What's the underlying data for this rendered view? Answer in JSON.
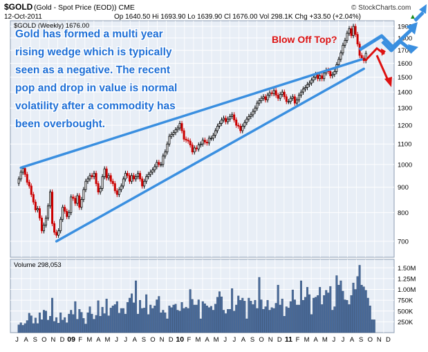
{
  "header": {
    "symbol": "$GOLD",
    "description": "(Gold - Spot Price (EOD)) CME",
    "watermark": "© StockCharts.com",
    "date": "12-Oct-2011",
    "ohlc": "Op 1640.50  Hi 1693.90  Lo 1639.90  Cl 1676.00  Vol 298.1K  Chg +33.50 (+2.04%)",
    "chg_arrow": "▲"
  },
  "legend": {
    "price": "$GOLD (Weekly) 1676.00",
    "volume": "Volume 298,053"
  },
  "annotations": {
    "commentary": [
      "Gold has formed a multi year",
      "rising wedge which is typically",
      "seen as a negative. The recent",
      "pop and drop in value is normal",
      "volatility after a commodity has",
      "been overbought."
    ],
    "blow_off": "Blow Off Top?"
  },
  "colors": {
    "up": "#000000",
    "down": "#cc0000",
    "volume": "#4a6b9a",
    "trendline": "#3a8fe0",
    "annotation_text": "#1e6fd6",
    "blow_off_text": "#dd1111",
    "arrow_red": "#dd1111",
    "arrow_blue": "#3a8fe0",
    "panel_bg": "#e8eef6",
    "grid": "#ffffff"
  },
  "chart_data": {
    "type": "candlestick",
    "title": "$GOLD (Weekly)",
    "price_axis": {
      "min": 650,
      "max": 1950,
      "scale": "log",
      "ticks": [
        700,
        800,
        900,
        1000,
        1100,
        1200,
        1300,
        1400,
        1500,
        1600,
        1700,
        1800,
        1900
      ]
    },
    "volume_axis": {
      "min": 0,
      "max": 1600000,
      "ticks": [
        {
          "v": 250000,
          "label": "250K"
        },
        {
          "v": 500000,
          "label": "500K"
        },
        {
          "v": 750000,
          "label": "750K"
        },
        {
          "v": 1000000,
          "label": "1.00M"
        },
        {
          "v": 1250000,
          "label": "1.25M"
        },
        {
          "v": 1500000,
          "label": "1.50M"
        }
      ]
    },
    "month_labels": [
      "J",
      "A",
      "S",
      "O",
      "N",
      "D",
      "'09",
      "F",
      "M",
      "A",
      "M",
      "J",
      "J",
      "A",
      "S",
      "O",
      "N",
      "D",
      "'10",
      "F",
      "M",
      "A",
      "M",
      "J",
      "J",
      "A",
      "S",
      "O",
      "N",
      "D",
      "'11",
      "F",
      "M",
      "A",
      "M",
      "J",
      "J",
      "A",
      "S",
      "O",
      "N",
      "D"
    ],
    "weeks_per_month": 4.33,
    "first_month_offset": 0.7,
    "week_closes": [
      935,
      965,
      982,
      955,
      921,
      905,
      870,
      840,
      810,
      815,
      780,
      735,
      755,
      780,
      825,
      880,
      760,
      730,
      720,
      735,
      775,
      820,
      805,
      785,
      800,
      860,
      855,
      835,
      865,
      820,
      850,
      890,
      925,
      935,
      950,
      945,
      960,
      915,
      880,
      895,
      945,
      980,
      940,
      950,
      925,
      915,
      885,
      870,
      890,
      905,
      935,
      960,
      950,
      925,
      950,
      935,
      945,
      960,
      935,
      905,
      925,
      945,
      955,
      965,
      975,
      990,
      1010,
      1000,
      1000,
      1040,
      1060,
      1100,
      1140,
      1150,
      1160,
      1175,
      1185,
      1210,
      1170,
      1125,
      1120,
      1115,
      1095,
      1060,
      1080,
      1075,
      1095,
      1100,
      1120,
      1110,
      1105,
      1130,
      1130,
      1145,
      1170,
      1195,
      1210,
      1230,
      1240,
      1220,
      1235,
      1250,
      1260,
      1230,
      1200,
      1195,
      1170,
      1195,
      1215,
      1235,
      1250,
      1260,
      1280,
      1300,
      1330,
      1345,
      1360,
      1370,
      1350,
      1380,
      1395,
      1390,
      1410,
      1380,
      1360,
      1385,
      1400,
      1370,
      1340,
      1340,
      1360,
      1370,
      1330,
      1350,
      1380,
      1400,
      1420,
      1430,
      1450,
      1460,
      1480,
      1500,
      1520,
      1490,
      1510,
      1490,
      1530,
      1550,
      1540,
      1510,
      1520,
      1540,
      1590,
      1630,
      1680,
      1740,
      1780,
      1840,
      1880,
      1820,
      1900,
      1830,
      1750,
      1660,
      1640,
      1620,
      1676
    ],
    "volumes": [
      180000,
      230000,
      170000,
      210000,
      280000,
      450000,
      390000,
      210000,
      340000,
      210000,
      460000,
      300000,
      520000,
      500000,
      290000,
      380000,
      800000,
      260000,
      350000,
      220000,
      460000,
      290000,
      350000,
      230000,
      430000,
      520000,
      420000,
      720000,
      310000,
      540000,
      470000,
      330000,
      200000,
      460000,
      600000,
      430000,
      310000,
      400000,
      740000,
      380000,
      590000,
      440000,
      780000,
      390000,
      570000,
      620000,
      650000,
      720000,
      450000,
      560000,
      560000,
      430000,
      700000,
      800000,
      900000,
      690000,
      1200000,
      430000,
      750000,
      560000,
      570000,
      880000,
      420000,
      640000,
      560000,
      620000,
      760000,
      840000,
      460000,
      520000,
      460000,
      320000,
      620000,
      580000,
      640000,
      660000,
      520000,
      500000,
      700000,
      560000,
      590000,
      560000,
      1000000,
      770000,
      640000,
      640000,
      760000,
      320000,
      720000,
      670000,
      620000,
      580000,
      610000,
      520000,
      660000,
      820000,
      950000,
      830000,
      520000,
      440000,
      540000,
      540000,
      1020000,
      500000,
      640000,
      850000,
      750000,
      800000,
      730000,
      320000,
      800000,
      730000,
      650000,
      750000,
      560000,
      1280000,
      760000,
      540000,
      600000,
      750000,
      520000,
      580000,
      560000,
      680000,
      1100000,
      640000,
      780000,
      380000,
      600000,
      570000,
      720000,
      990000,
      760000,
      640000,
      640000,
      1200000,
      750000,
      820000,
      1050000,
      880000,
      420000,
      800000,
      820000,
      860000,
      1050000,
      650000,
      860000,
      980000,
      920000,
      1070000,
      520000,
      600000,
      1320000,
      1100000,
      1200000,
      960000,
      760000,
      750000,
      650000,
      860000,
      1150000,
      1000000,
      1300000,
      1560000,
      1100000,
      1060000,
      980000,
      800000,
      620000,
      300000,
      298053
    ],
    "trendlines": [
      {
        "name": "wedge-upper",
        "from": {
          "week": 1,
          "price": 985
        },
        "to": {
          "week": 164,
          "price": 1630
        }
      },
      {
        "name": "wedge-lower",
        "from": {
          "week": 18,
          "price": 700
        },
        "to": {
          "week": 165,
          "price": 1560
        }
      }
    ]
  }
}
